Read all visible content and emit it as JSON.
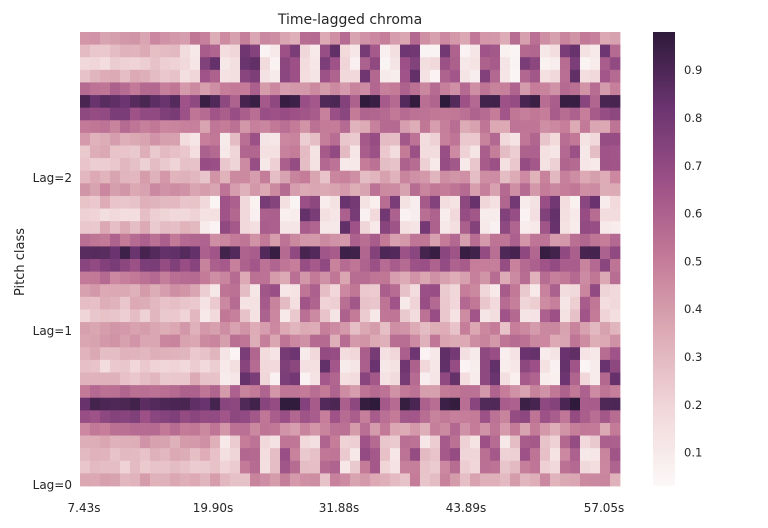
{
  "chart_data": {
    "type": "heatmap",
    "title": "Time-lagged chroma",
    "xlabel": "",
    "ylabel": "Pitch class",
    "x_tick_labels": [
      "7.43s",
      "19.90s",
      "31.88s",
      "43.89s",
      "57.05s"
    ],
    "y_tick_labels": [
      "Lag=0",
      "Lag=1",
      "Lag=2"
    ],
    "n_columns": 54,
    "n_rows": 36,
    "rows_per_lag": 12,
    "value_range": [
      0.03,
      0.98
    ],
    "colorbar_ticks": [
      "0.1",
      "0.2",
      "0.3",
      "0.4",
      "0.5",
      "0.6",
      "0.7",
      "0.8",
      "0.9"
    ],
    "colormap": [
      "#fcf8f8",
      "#f1d8da",
      "#ddacb6",
      "#c47b98",
      "#9d5187",
      "#6b3470",
      "#2e1a3a"
    ],
    "grid": false,
    "legend": "colorbar-right"
  }
}
